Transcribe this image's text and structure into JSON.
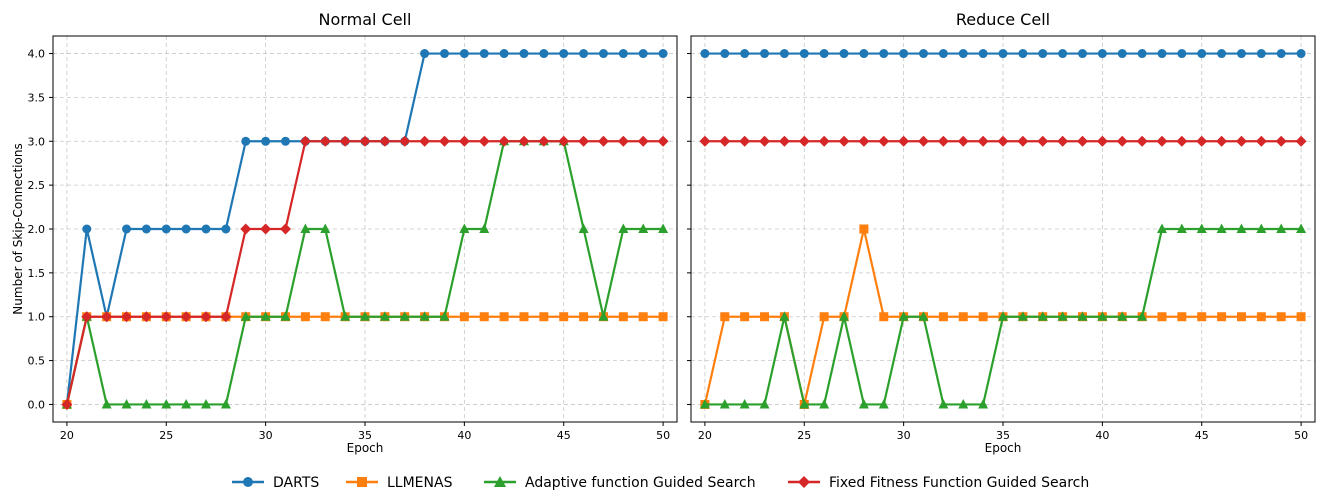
{
  "chart_data": [
    {
      "type": "line",
      "title": "Normal Cell",
      "xlabel": "Epoch",
      "ylabel": "Number of Skip-Connections",
      "xlim": [
        19.3,
        50.7
      ],
      "ylim": [
        -0.2,
        4.2
      ],
      "xticks": [
        20,
        25,
        30,
        35,
        40,
        45,
        50
      ],
      "yticks": [
        "0.0",
        "0.5",
        "1.0",
        "1.5",
        "2.0",
        "2.5",
        "3.0",
        "3.5",
        "4.0"
      ],
      "grid": true,
      "x": [
        20,
        21,
        22,
        23,
        24,
        25,
        26,
        27,
        28,
        29,
        30,
        31,
        32,
        33,
        34,
        35,
        36,
        37,
        38,
        39,
        40,
        41,
        42,
        43,
        44,
        45,
        46,
        47,
        48,
        49,
        50
      ],
      "series": [
        {
          "name": "DARTS",
          "color": "#1f77b4",
          "marker": "circle",
          "values": [
            0,
            2,
            1,
            2,
            2,
            2,
            2,
            2,
            2,
            3,
            3,
            3,
            3,
            3,
            3,
            3,
            3,
            3,
            4,
            4,
            4,
            4,
            4,
            4,
            4,
            4,
            4,
            4,
            4,
            4,
            4
          ]
        },
        {
          "name": "LLMENAS",
          "color": "#ff7f0e",
          "marker": "square",
          "values": [
            0,
            1,
            1,
            1,
            1,
            1,
            1,
            1,
            1,
            1,
            1,
            1,
            1,
            1,
            1,
            1,
            1,
            1,
            1,
            1,
            1,
            1,
            1,
            1,
            1,
            1,
            1,
            1,
            1,
            1,
            1
          ]
        },
        {
          "name": "Adaptive function Guided Search",
          "color": "#2ca02c",
          "marker": "triangle",
          "values": [
            0,
            1,
            0,
            0,
            0,
            0,
            0,
            0,
            0,
            1,
            1,
            1,
            2,
            2,
            1,
            1,
            1,
            1,
            1,
            1,
            2,
            2,
            3,
            3,
            3,
            3,
            2,
            1,
            2,
            2,
            2
          ]
        },
        {
          "name": "Fixed Fitness Function Guided Search",
          "color": "#d62728",
          "marker": "diamond",
          "values": [
            0,
            1,
            1,
            1,
            1,
            1,
            1,
            1,
            1,
            2,
            2,
            2,
            3,
            3,
            3,
            3,
            3,
            3,
            3,
            3,
            3,
            3,
            3,
            3,
            3,
            3,
            3,
            3,
            3,
            3,
            3
          ]
        }
      ]
    },
    {
      "type": "line",
      "title": "Reduce Cell",
      "xlabel": "Epoch",
      "ylabel": "",
      "xlim": [
        19.3,
        50.7
      ],
      "ylim": [
        -0.2,
        4.2
      ],
      "xticks": [
        20,
        25,
        30,
        35,
        40,
        45,
        50
      ],
      "yticks": [],
      "grid": true,
      "x": [
        20,
        21,
        22,
        23,
        24,
        25,
        26,
        27,
        28,
        29,
        30,
        31,
        32,
        33,
        34,
        35,
        36,
        37,
        38,
        39,
        40,
        41,
        42,
        43,
        44,
        45,
        46,
        47,
        48,
        49,
        50
      ],
      "series": [
        {
          "name": "DARTS",
          "color": "#1f77b4",
          "marker": "circle",
          "values": [
            4,
            4,
            4,
            4,
            4,
            4,
            4,
            4,
            4,
            4,
            4,
            4,
            4,
            4,
            4,
            4,
            4,
            4,
            4,
            4,
            4,
            4,
            4,
            4,
            4,
            4,
            4,
            4,
            4,
            4,
            4
          ]
        },
        {
          "name": "LLMENAS",
          "color": "#ff7f0e",
          "marker": "square",
          "values": [
            0,
            1,
            1,
            1,
            1,
            0,
            1,
            1,
            2,
            1,
            1,
            1,
            1,
            1,
            1,
            1,
            1,
            1,
            1,
            1,
            1,
            1,
            1,
            1,
            1,
            1,
            1,
            1,
            1,
            1,
            1
          ]
        },
        {
          "name": "Adaptive function Guided Search",
          "color": "#2ca02c",
          "marker": "triangle",
          "values": [
            0,
            0,
            0,
            0,
            1,
            0,
            0,
            1,
            0,
            0,
            1,
            1,
            0,
            0,
            0,
            1,
            1,
            1,
            1,
            1,
            1,
            1,
            1,
            2,
            2,
            2,
            2,
            2,
            2,
            2,
            2
          ]
        },
        {
          "name": "Fixed Fitness Function Guided Search",
          "color": "#d62728",
          "marker": "diamond",
          "values": [
            3,
            3,
            3,
            3,
            3,
            3,
            3,
            3,
            3,
            3,
            3,
            3,
            3,
            3,
            3,
            3,
            3,
            3,
            3,
            3,
            3,
            3,
            3,
            3,
            3,
            3,
            3,
            3,
            3,
            3,
            3
          ]
        }
      ]
    }
  ],
  "legend": {
    "placement": "bottom-center",
    "entries": [
      {
        "label": "DARTS",
        "color": "#1f77b4",
        "marker": "circle"
      },
      {
        "label": "LLMENAS",
        "color": "#ff7f0e",
        "marker": "square"
      },
      {
        "label": "Adaptive function Guided Search",
        "color": "#2ca02c",
        "marker": "triangle"
      },
      {
        "label": "Fixed Fitness Function Guided Search",
        "color": "#d62728",
        "marker": "diamond"
      }
    ]
  }
}
